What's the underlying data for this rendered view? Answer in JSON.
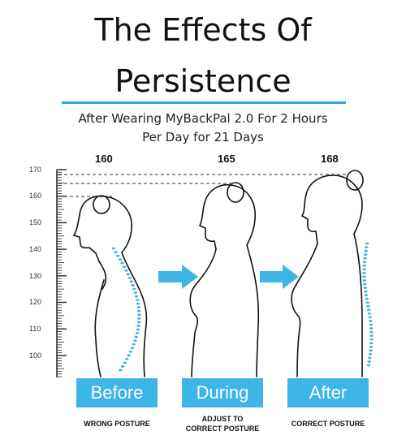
{
  "title": {
    "line1": "The Effects Of",
    "line2": "Persistence"
  },
  "subtitle": {
    "line1": "After Wearing MyBackPal 2.0 For 2 Hours",
    "line2": "Per Day for 21 Days"
  },
  "heights": [
    "160",
    "165",
    "168"
  ],
  "ruler": {
    "labels": [
      "170",
      "160",
      "150",
      "140",
      "130",
      "120",
      "110",
      "100"
    ]
  },
  "stages": [
    {
      "label": "Before",
      "caption_line1": "WRONG POSTURE",
      "caption_line2": ""
    },
    {
      "label": "During",
      "caption_line1": "ADJUST TO",
      "caption_line2": "CORRECT POSTURE"
    },
    {
      "label": "After",
      "caption_line1": "CORRECT POSTURE",
      "caption_line2": ""
    }
  ],
  "colors": {
    "accent": "#3fb4e6",
    "rule": "#29a9dc",
    "line": "#111111"
  }
}
